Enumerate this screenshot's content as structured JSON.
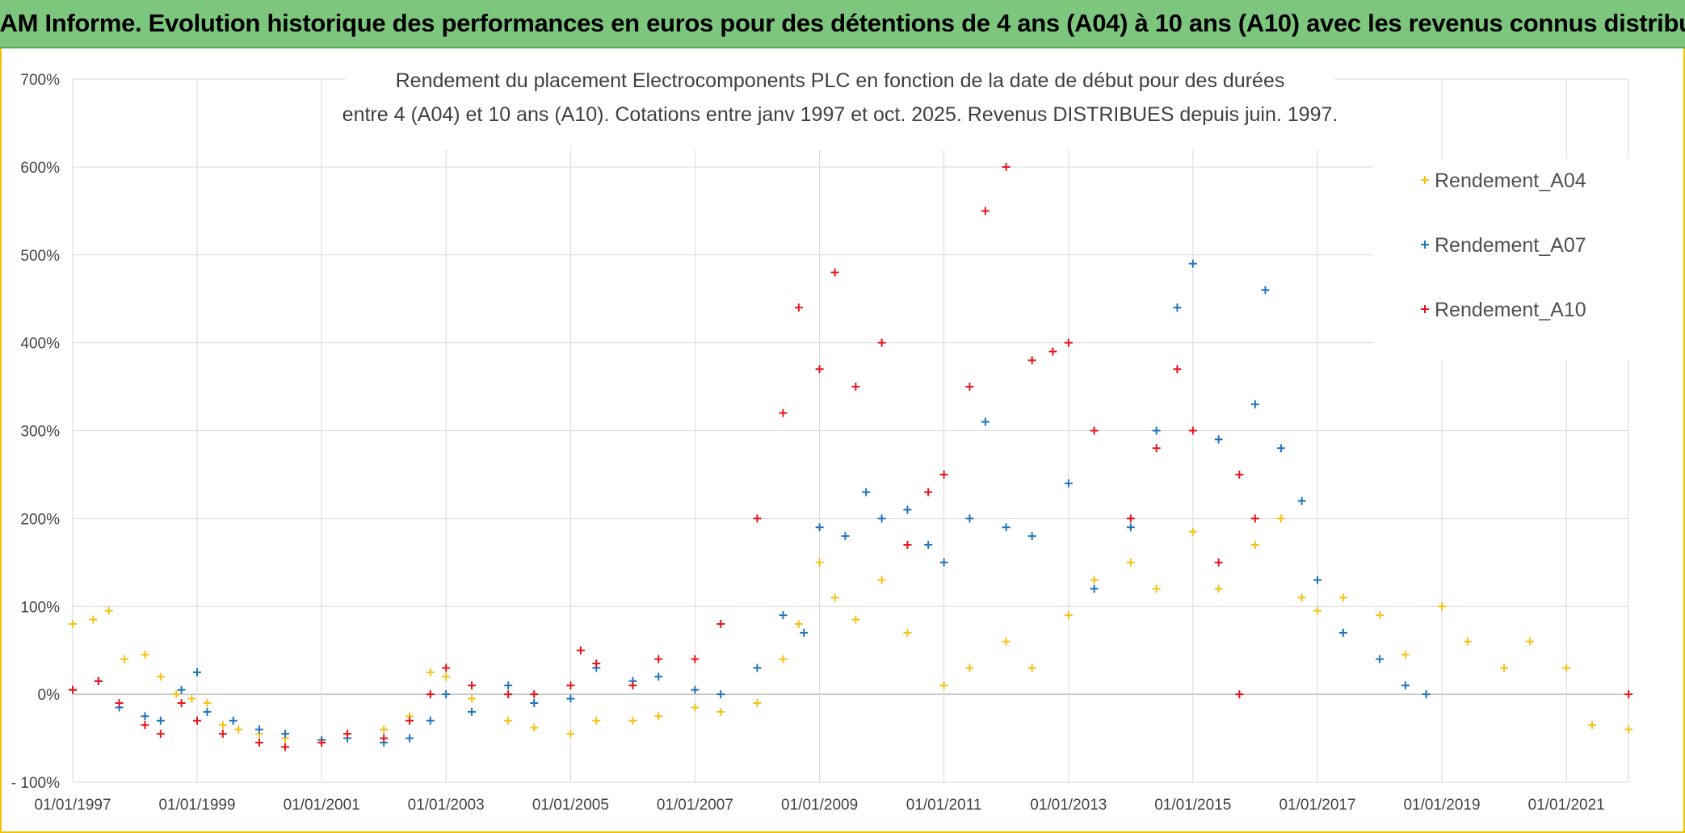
{
  "header": {
    "banner": "ADAM Informe. Evolution historique des performances en euros pour des détentions de 4 ans (A04) à 10 ans (A10) avec les revenus connus distribués"
  },
  "colors": {
    "banner_bg": "#7dc67d",
    "A04": "#f5c218",
    "A07": "#1f74bd",
    "A10": "#e8141b",
    "grid": "#d9d9d9"
  },
  "chart_data": {
    "type": "scatter",
    "title_line1": "Rendement du placement Electrocomponents PLC en fonction de la date de début pour des durées",
    "title_line2": "entre 4 (A04) et 10 ans (A10). Cotations entre janv 1997 et oct. 2025. Revenus DISTRIBUES depuis juin. 1997.",
    "xlabel": "",
    "ylabel": "",
    "x_range": [
      "1997-01-01",
      "2022-01-01"
    ],
    "x_ticks": [
      "01/01/1997",
      "01/01/1999",
      "01/01/2001",
      "01/01/2003",
      "01/01/2005",
      "01/01/2007",
      "01/01/2009",
      "01/01/2011",
      "01/01/2013",
      "01/01/2015",
      "01/01/2017",
      "01/01/2019",
      "01/01/2021"
    ],
    "ylim": [
      -100,
      700
    ],
    "y_ticks": [
      "- 100%",
      "0%",
      "100%",
      "200%",
      "300%",
      "400%",
      "500%",
      "600%",
      "700%"
    ],
    "grid": true,
    "legend_position": "top-right",
    "marker": "+",
    "series": [
      {
        "name": "Rendement_A04",
        "color": "#f5c218",
        "points": [
          [
            "1997-01-01",
            80
          ],
          [
            "1997-05-01",
            85
          ],
          [
            "1997-08-01",
            95
          ],
          [
            "1997-11-01",
            40
          ],
          [
            "1998-03-01",
            45
          ],
          [
            "1998-06-01",
            20
          ],
          [
            "1998-09-01",
            0
          ],
          [
            "1998-12-01",
            -5
          ],
          [
            "1999-03-01",
            -10
          ],
          [
            "1999-06-01",
            -35
          ],
          [
            "1999-09-01",
            -40
          ],
          [
            "2000-01-01",
            -45
          ],
          [
            "2000-06-01",
            -50
          ],
          [
            "2001-01-01",
            -55
          ],
          [
            "2001-06-01",
            -45
          ],
          [
            "2002-01-01",
            -40
          ],
          [
            "2002-06-01",
            -25
          ],
          [
            "2002-10-01",
            25
          ],
          [
            "2003-01-01",
            20
          ],
          [
            "2003-06-01",
            -5
          ],
          [
            "2004-01-01",
            -30
          ],
          [
            "2004-06-01",
            -38
          ],
          [
            "2005-01-01",
            -45
          ],
          [
            "2005-06-01",
            -30
          ],
          [
            "2006-01-01",
            -30
          ],
          [
            "2006-06-01",
            -25
          ],
          [
            "2007-01-01",
            -15
          ],
          [
            "2007-06-01",
            -20
          ],
          [
            "2008-01-01",
            -10
          ],
          [
            "2008-06-01",
            40
          ],
          [
            "2008-09-01",
            80
          ],
          [
            "2009-01-01",
            150
          ],
          [
            "2009-04-01",
            110
          ],
          [
            "2009-08-01",
            85
          ],
          [
            "2010-01-01",
            130
          ],
          [
            "2010-06-01",
            70
          ],
          [
            "2011-01-01",
            10
          ],
          [
            "2011-06-01",
            30
          ],
          [
            "2012-01-01",
            60
          ],
          [
            "2012-06-01",
            30
          ],
          [
            "2013-01-01",
            90
          ],
          [
            "2013-06-01",
            130
          ],
          [
            "2014-01-01",
            150
          ],
          [
            "2014-06-01",
            120
          ],
          [
            "2015-01-01",
            185
          ],
          [
            "2015-06-01",
            120
          ],
          [
            "2016-01-01",
            170
          ],
          [
            "2016-06-01",
            200
          ],
          [
            "2016-10-01",
            110
          ],
          [
            "2017-01-01",
            95
          ],
          [
            "2017-06-01",
            110
          ],
          [
            "2018-01-01",
            90
          ],
          [
            "2018-06-01",
            45
          ],
          [
            "2019-01-01",
            100
          ],
          [
            "2019-06-01",
            60
          ],
          [
            "2020-01-01",
            30
          ],
          [
            "2020-06-01",
            60
          ],
          [
            "2021-01-01",
            30
          ],
          [
            "2021-06-01",
            -35
          ],
          [
            "2022-01-01",
            -40
          ]
        ]
      },
      {
        "name": "Rendement_A07",
        "color": "#1f74bd",
        "points": [
          [
            "1997-01-01",
            5
          ],
          [
            "1997-06-01",
            15
          ],
          [
            "1997-10-01",
            -15
          ],
          [
            "1998-03-01",
            -25
          ],
          [
            "1998-06-01",
            -30
          ],
          [
            "1998-10-01",
            5
          ],
          [
            "1999-01-01",
            25
          ],
          [
            "1999-03-01",
            -20
          ],
          [
            "1999-08-01",
            -30
          ],
          [
            "2000-01-01",
            -40
          ],
          [
            "2000-06-01",
            -45
          ],
          [
            "2001-01-01",
            -52
          ],
          [
            "2001-06-01",
            -50
          ],
          [
            "2002-01-01",
            -55
          ],
          [
            "2002-06-01",
            -50
          ],
          [
            "2002-10-01",
            -30
          ],
          [
            "2003-01-01",
            0
          ],
          [
            "2003-06-01",
            -20
          ],
          [
            "2004-01-01",
            10
          ],
          [
            "2004-06-01",
            -10
          ],
          [
            "2005-01-01",
            -5
          ],
          [
            "2005-06-01",
            30
          ],
          [
            "2006-01-01",
            15
          ],
          [
            "2006-06-01",
            20
          ],
          [
            "2007-01-01",
            5
          ],
          [
            "2007-06-01",
            0
          ],
          [
            "2008-01-01",
            30
          ],
          [
            "2008-06-01",
            90
          ],
          [
            "2008-10-01",
            70
          ],
          [
            "2009-01-01",
            190
          ],
          [
            "2009-06-01",
            180
          ],
          [
            "2009-10-01",
            230
          ],
          [
            "2010-01-01",
            200
          ],
          [
            "2010-06-01",
            210
          ],
          [
            "2010-10-01",
            170
          ],
          [
            "2011-01-01",
            150
          ],
          [
            "2011-06-01",
            200
          ],
          [
            "2011-09-01",
            310
          ],
          [
            "2012-01-01",
            190
          ],
          [
            "2012-06-01",
            180
          ],
          [
            "2013-01-01",
            240
          ],
          [
            "2013-06-01",
            120
          ],
          [
            "2014-01-01",
            190
          ],
          [
            "2014-06-01",
            300
          ],
          [
            "2014-10-01",
            440
          ],
          [
            "2015-01-01",
            490
          ],
          [
            "2015-06-01",
            290
          ],
          [
            "2016-01-01",
            330
          ],
          [
            "2016-03-01",
            460
          ],
          [
            "2016-06-01",
            280
          ],
          [
            "2016-10-01",
            220
          ],
          [
            "2017-01-01",
            130
          ],
          [
            "2017-06-01",
            70
          ],
          [
            "2018-01-01",
            40
          ],
          [
            "2018-06-01",
            10
          ],
          [
            "2018-10-01",
            0
          ]
        ]
      },
      {
        "name": "Rendement_A10",
        "color": "#e8141b",
        "points": [
          [
            "1997-01-01",
            5
          ],
          [
            "1997-06-01",
            15
          ],
          [
            "1997-10-01",
            -10
          ],
          [
            "1998-03-01",
            -35
          ],
          [
            "1998-06-01",
            -45
          ],
          [
            "1998-10-01",
            -10
          ],
          [
            "1999-01-01",
            -30
          ],
          [
            "1999-06-01",
            -45
          ],
          [
            "2000-01-01",
            -55
          ],
          [
            "2000-06-01",
            -60
          ],
          [
            "2001-01-01",
            -55
          ],
          [
            "2001-06-01",
            -45
          ],
          [
            "2002-01-01",
            -50
          ],
          [
            "2002-06-01",
            -30
          ],
          [
            "2002-10-01",
            0
          ],
          [
            "2003-01-01",
            30
          ],
          [
            "2003-06-01",
            10
          ],
          [
            "2004-01-01",
            0
          ],
          [
            "2004-06-01",
            0
          ],
          [
            "2005-01-01",
            10
          ],
          [
            "2005-03-01",
            50
          ],
          [
            "2005-06-01",
            35
          ],
          [
            "2006-01-01",
            10
          ],
          [
            "2006-06-01",
            40
          ],
          [
            "2007-01-01",
            40
          ],
          [
            "2007-06-01",
            80
          ],
          [
            "2008-01-01",
            200
          ],
          [
            "2008-06-01",
            320
          ],
          [
            "2008-09-01",
            440
          ],
          [
            "2009-01-01",
            370
          ],
          [
            "2009-04-01",
            480
          ],
          [
            "2009-08-01",
            350
          ],
          [
            "2010-01-01",
            400
          ],
          [
            "2010-06-01",
            170
          ],
          [
            "2010-10-01",
            230
          ],
          [
            "2011-01-01",
            250
          ],
          [
            "2011-06-01",
            350
          ],
          [
            "2011-09-01",
            550
          ],
          [
            "2012-01-01",
            600
          ],
          [
            "2012-06-01",
            380
          ],
          [
            "2012-10-01",
            390
          ],
          [
            "2013-01-01",
            400
          ],
          [
            "2013-06-01",
            300
          ],
          [
            "2014-01-01",
            200
          ],
          [
            "2014-06-01",
            280
          ],
          [
            "2014-10-01",
            370
          ],
          [
            "2015-01-01",
            300
          ],
          [
            "2015-06-01",
            150
          ],
          [
            "2015-10-01",
            250
          ],
          [
            "2016-01-01",
            200
          ]
        ]
      },
      {
        "name": "Rendement_A10",
        "color": "#e8141b",
        "points": [
          [
            "2015-10-01",
            0
          ],
          [
            "2022-01-01",
            0
          ]
        ]
      }
    ]
  },
  "legend": [
    {
      "name": "Rendement_A04",
      "color": "#f5c218"
    },
    {
      "name": "Rendement_A07",
      "color": "#1f74bd"
    },
    {
      "name": "Rendement_A10",
      "color": "#e8141b"
    }
  ]
}
